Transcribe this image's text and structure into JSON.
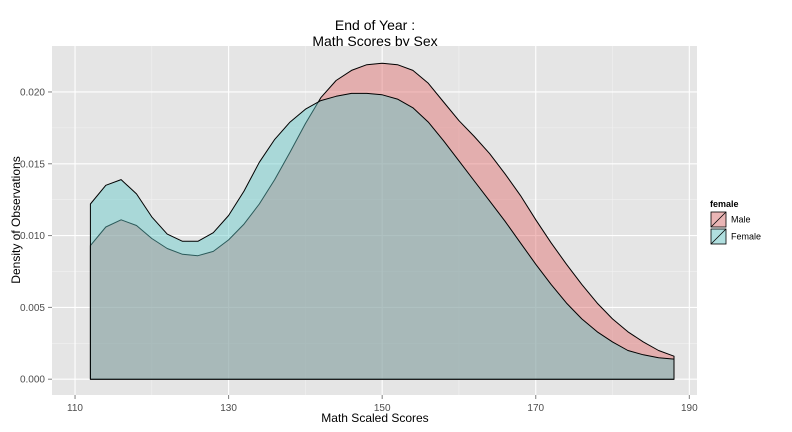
{
  "chart_data": {
    "type": "area",
    "title_lines": [
      "End of Year :",
      "Math Scores by Sex"
    ],
    "xlabel": "Math Scaled Scores",
    "ylabel": "Density of Observations",
    "xlim": [
      107,
      191
    ],
    "ylim": [
      -0.0011,
      0.0232
    ],
    "xticks": [
      110,
      130,
      150,
      170,
      190
    ],
    "yticks": [
      0.0,
      0.005,
      0.01,
      0.015,
      0.02
    ],
    "ytick_labels": [
      "0.000",
      "0.005",
      "0.010",
      "0.015",
      "0.020"
    ],
    "grid": true,
    "legend": {
      "title": "female",
      "position": "right"
    },
    "series": [
      {
        "name": "Male",
        "color": "#e06b6b",
        "x": [
          112,
          114,
          116,
          118,
          120,
          122,
          124,
          126,
          128,
          130,
          132,
          134,
          136,
          138,
          140,
          142,
          144,
          146,
          148,
          150,
          152,
          154,
          156,
          158,
          160,
          162,
          164,
          166,
          168,
          170,
          172,
          174,
          176,
          178,
          180,
          182,
          184,
          186,
          188
        ],
        "y": [
          0.0093,
          0.0106,
          0.0111,
          0.0107,
          0.0098,
          0.0091,
          0.0087,
          0.0086,
          0.0089,
          0.0097,
          0.0108,
          0.0122,
          0.0139,
          0.0158,
          0.0178,
          0.0196,
          0.0208,
          0.0215,
          0.0219,
          0.022,
          0.0219,
          0.0215,
          0.0206,
          0.0193,
          0.018,
          0.0169,
          0.0157,
          0.0143,
          0.0128,
          0.0111,
          0.0095,
          0.008,
          0.0066,
          0.0053,
          0.0042,
          0.0033,
          0.0026,
          0.002,
          0.0016
        ]
      },
      {
        "name": "Female",
        "color": "#5fc8c8",
        "x": [
          112,
          114,
          116,
          118,
          120,
          122,
          124,
          126,
          128,
          130,
          132,
          134,
          136,
          138,
          140,
          142,
          144,
          146,
          148,
          150,
          152,
          154,
          156,
          158,
          160,
          162,
          164,
          166,
          168,
          170,
          172,
          174,
          176,
          178,
          180,
          182,
          184,
          186,
          188
        ],
        "y": [
          0.0122,
          0.0135,
          0.0139,
          0.0129,
          0.0113,
          0.0101,
          0.0096,
          0.0096,
          0.0102,
          0.0114,
          0.0131,
          0.0151,
          0.0167,
          0.0179,
          0.0188,
          0.0194,
          0.0197,
          0.0199,
          0.0199,
          0.0198,
          0.0195,
          0.0189,
          0.0179,
          0.0166,
          0.0152,
          0.0138,
          0.0124,
          0.011,
          0.0095,
          0.008,
          0.0066,
          0.0053,
          0.0042,
          0.0033,
          0.0026,
          0.002,
          0.0017,
          0.0015,
          0.0014
        ]
      }
    ]
  }
}
